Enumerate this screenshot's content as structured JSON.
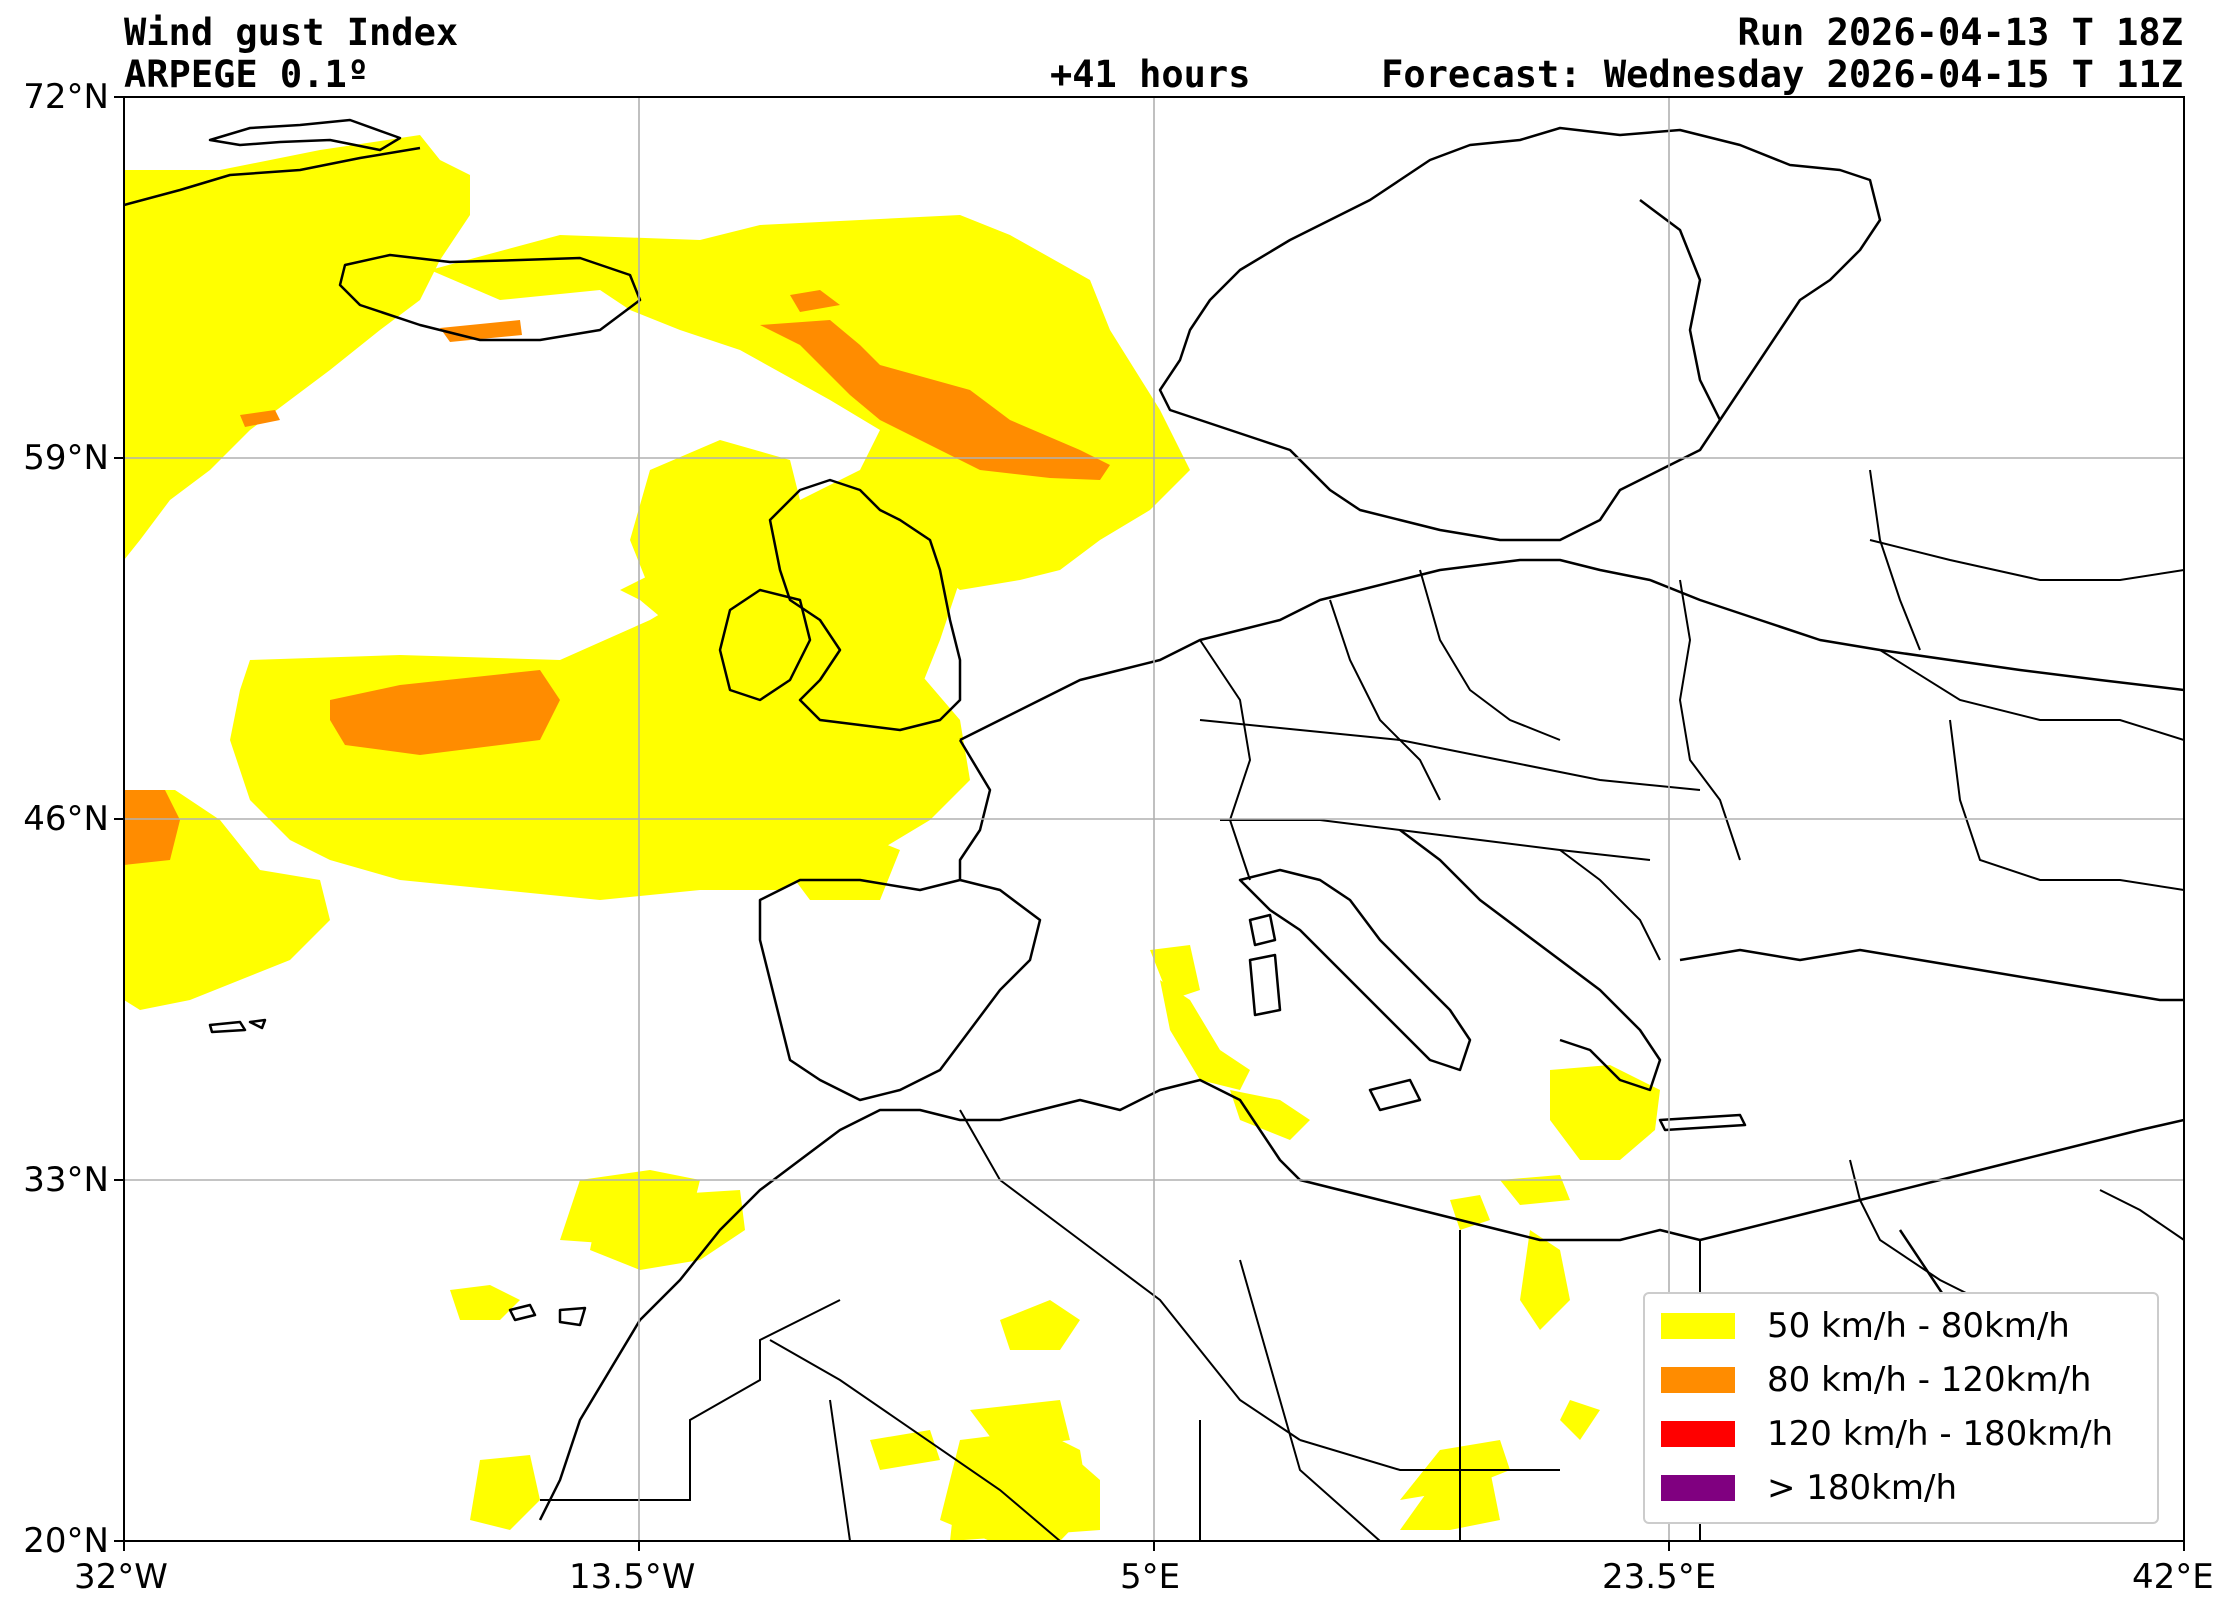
{
  "header": {
    "title": "Wind gust Index",
    "model": "ARPEGE 0.1º",
    "run": "Run 2026-04-13 T 18Z",
    "lead": "+41 hours",
    "forecast": "Forecast: Wednesday 2026-04-15 T 11Z"
  },
  "axes": {
    "lat_labels": [
      "72°N",
      "59°N",
      "46°N",
      "33°N",
      "20°N"
    ],
    "lon_labels": [
      "32°W",
      "13.5°W",
      "5°E",
      "23.5°E",
      "42°E"
    ],
    "lat_range": [
      20,
      72
    ],
    "lon_range": [
      -32,
      42
    ],
    "grid": true
  },
  "legend": {
    "items": [
      {
        "label": "50 km/h - 80km/h",
        "color": "#ffff00"
      },
      {
        "label": "80 km/h - 120km/h",
        "color": "#ff8c00"
      },
      {
        "label": "120 km/h - 180km/h",
        "color": "#ff0000"
      },
      {
        "label": "> 180km/h",
        "color": "#800080"
      }
    ]
  }
}
